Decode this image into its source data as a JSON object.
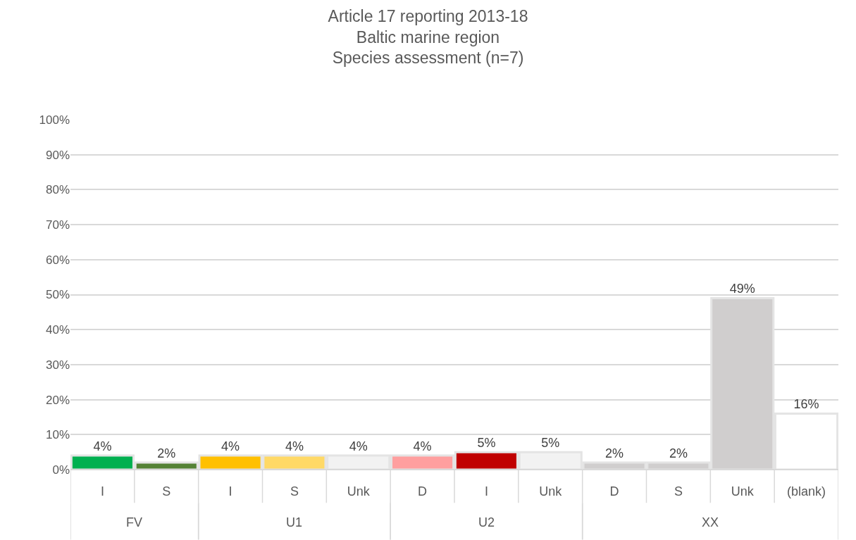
{
  "chart_data": {
    "type": "bar",
    "title": "Article 17 reporting 2013-18\nBaltic marine region\nSpecies assessment (n=7)",
    "categories": [
      "I",
      "S",
      "I",
      "S",
      "Unk",
      "D",
      "I",
      "Unk",
      "D",
      "S",
      "Unk",
      "(blank)"
    ],
    "values": [
      4,
      2,
      4,
      4,
      4,
      4,
      5,
      5,
      2,
      2,
      49,
      16
    ],
    "value_labels": [
      "4%",
      "2%",
      "4%",
      "4%",
      "4%",
      "4%",
      "5%",
      "5%",
      "2%",
      "2%",
      "49%",
      "16%"
    ],
    "colors": [
      "#00b050",
      "#548235",
      "#ffc000",
      "#ffd966",
      "#f2f2f2",
      "#ff9f9f",
      "#c00000",
      "#f2f2f2",
      "#d0cece",
      "#d0cece",
      "#d0cece",
      "#ffffff"
    ],
    "annotations": [
      "FV",
      "U1",
      "U2",
      "XX"
    ],
    "ylim": [
      0,
      100
    ],
    "yticks": [
      {
        "value": 0,
        "label": "0%"
      },
      {
        "value": 10,
        "label": "10%"
      },
      {
        "value": 20,
        "label": "20%"
      },
      {
        "value": 30,
        "label": "30%"
      },
      {
        "value": 40,
        "label": "40%"
      },
      {
        "value": 50,
        "label": "50%"
      },
      {
        "value": 60,
        "label": "60%"
      },
      {
        "value": 70,
        "label": "70%"
      },
      {
        "value": 80,
        "label": "80%"
      },
      {
        "value": 90,
        "label": "90%"
      },
      {
        "value": 100,
        "label": "100%"
      }
    ],
    "grid": "y"
  }
}
